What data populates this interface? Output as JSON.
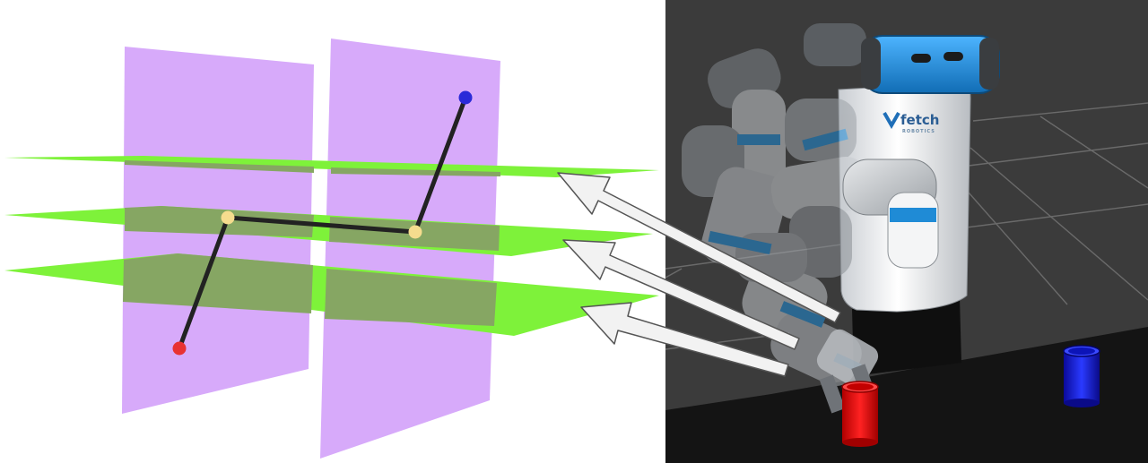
{
  "colors": {
    "plane_vertical": "#d7aafa",
    "plane_horizontal": "#7ef23a",
    "plane_overlap": "#86a663",
    "path": "#222222",
    "start_point": "#e83232",
    "goal_point": "#2a2ad8",
    "waypoint": "#f5dc8e",
    "scene_background": "#3b3b3b",
    "grid": "#6a6a6a",
    "floor": "#1a1a1a",
    "robot_accent": "#1f8bd6",
    "cup_red": "#ff1010",
    "cup_blue": "#1020ee",
    "arrow_fill": "#f2f2f2",
    "arrow_stroke": "#555555"
  },
  "robot": {
    "logo_text": "fetch",
    "logo_subtext": "ROBOTICS",
    "logo_icon": "fetch-v-logo-icon"
  },
  "diagram": {
    "vertical_planes": 2,
    "horizontal_planes": 3,
    "path_points": [
      "start",
      "waypoint",
      "waypoint",
      "goal"
    ],
    "arrows": 3
  }
}
